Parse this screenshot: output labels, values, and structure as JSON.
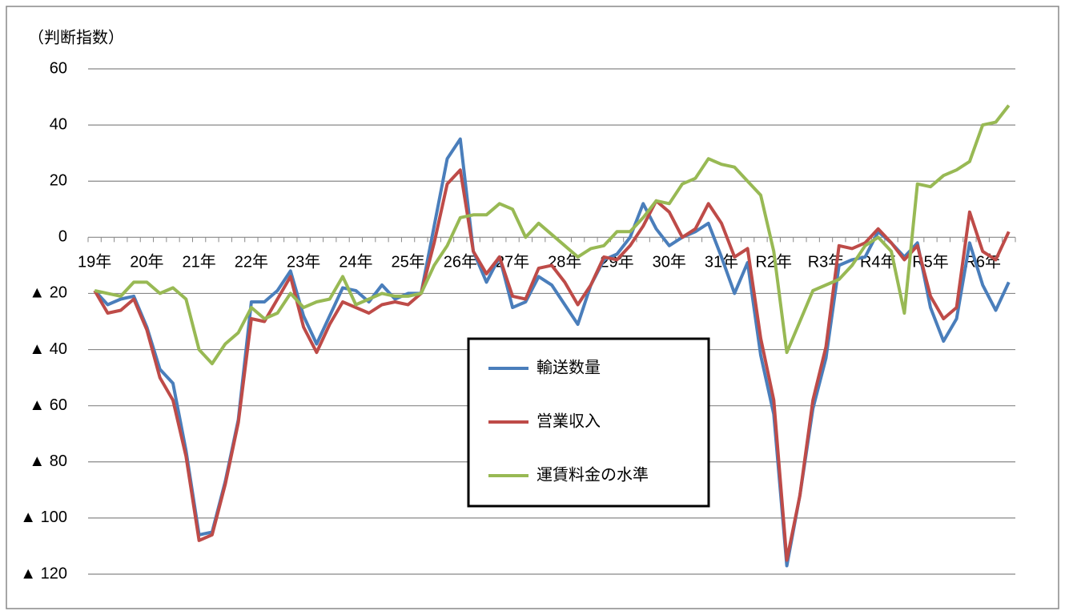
{
  "chart_data": {
    "type": "line",
    "y_axis_label": "（判断指数）",
    "categories": [
      "19年",
      null,
      null,
      null,
      "20年",
      null,
      null,
      null,
      "21年",
      null,
      null,
      null,
      "22年",
      null,
      null,
      null,
      "23年",
      null,
      null,
      null,
      "24年",
      null,
      null,
      null,
      "25年",
      null,
      null,
      null,
      "26年",
      null,
      null,
      null,
      "27年",
      null,
      null,
      null,
      "28年",
      null,
      null,
      null,
      "29年",
      null,
      null,
      null,
      "30年",
      null,
      null,
      null,
      "31年",
      null,
      null,
      null,
      "R2年",
      null,
      null,
      null,
      "R3年",
      null,
      null,
      null,
      "R4年",
      null,
      null,
      null,
      "R5年",
      null,
      null,
      null,
      "R6年",
      null,
      null
    ],
    "series": [
      {
        "name": "輸送数量",
        "color": "#4a7ebb",
        "values": [
          -19,
          -24,
          -22,
          -21,
          -32,
          -47,
          -52,
          -76,
          -106,
          -105,
          -87,
          -65,
          -23,
          -23,
          -19,
          -12,
          -28,
          -38,
          -28,
          -18,
          -19,
          -23,
          -17,
          -22,
          -20,
          -20,
          4,
          28,
          35,
          -5,
          -16,
          -7,
          -25,
          -23,
          -14,
          -17,
          -24,
          -31,
          -17,
          -8,
          -6,
          0,
          12,
          3,
          -3,
          0,
          2,
          5,
          -7,
          -20,
          -9,
          -42,
          -63,
          -117,
          -92,
          -61,
          -43,
          -10,
          -8,
          -7,
          2,
          -2,
          -7,
          -2,
          -25,
          -37,
          -29,
          -2,
          -17,
          -26,
          -16
        ]
      },
      {
        "name": "営業収入",
        "color": "#be4b48",
        "values": [
          -19,
          -27,
          -26,
          -22,
          -33,
          -50,
          -58,
          -78,
          -108,
          -106,
          -88,
          -66,
          -29,
          -30,
          -22,
          -14,
          -32,
          -41,
          -31,
          -23,
          -25,
          -27,
          -24,
          -23,
          -24,
          -20,
          -2,
          19,
          24,
          -5,
          -13,
          -7,
          -21,
          -22,
          -11,
          -10,
          -16,
          -24,
          -17,
          -7,
          -8,
          -3,
          4,
          13,
          9,
          0,
          3,
          12,
          5,
          -7,
          -4,
          -36,
          -58,
          -115,
          -92,
          -58,
          -39,
          -3,
          -4,
          -2,
          3,
          -2,
          -8,
          -3,
          -21,
          -29,
          -25,
          9,
          -5,
          -8,
          2
        ]
      },
      {
        "name": "運賃料金の水準",
        "color": "#98b954",
        "values": [
          -19,
          -20,
          -21,
          -16,
          -16,
          -20,
          -18,
          -22,
          -40,
          -45,
          -38,
          -34,
          -25,
          -29,
          -27,
          -20,
          -25,
          -23,
          -22,
          -14,
          -24,
          -22,
          -20,
          -21,
          -21,
          -20,
          -10,
          -3,
          7,
          8,
          8,
          12,
          10,
          0,
          5,
          1,
          -3,
          -7,
          -4,
          -3,
          2,
          2,
          7,
          13,
          12,
          19,
          21,
          28,
          26,
          25,
          20,
          15,
          -5,
          -41,
          -30,
          -19,
          -17,
          -15,
          -10,
          -3,
          0,
          -5,
          -27,
          19,
          18,
          22,
          24,
          27,
          40,
          41,
          47
        ]
      }
    ],
    "ylim": [
      -120,
      60
    ],
    "yticks": [
      60,
      40,
      20,
      0,
      {
        "value": -20,
        "label": "▲ 20"
      },
      {
        "value": -40,
        "label": "▲ 40"
      },
      {
        "value": -60,
        "label": "▲ 60"
      },
      {
        "value": -80,
        "label": "▲ 80"
      },
      {
        "value": -100,
        "label": "▲ 100"
      },
      {
        "value": -120,
        "label": "▲ 120"
      }
    ],
    "grid": true,
    "legend": "center"
  }
}
